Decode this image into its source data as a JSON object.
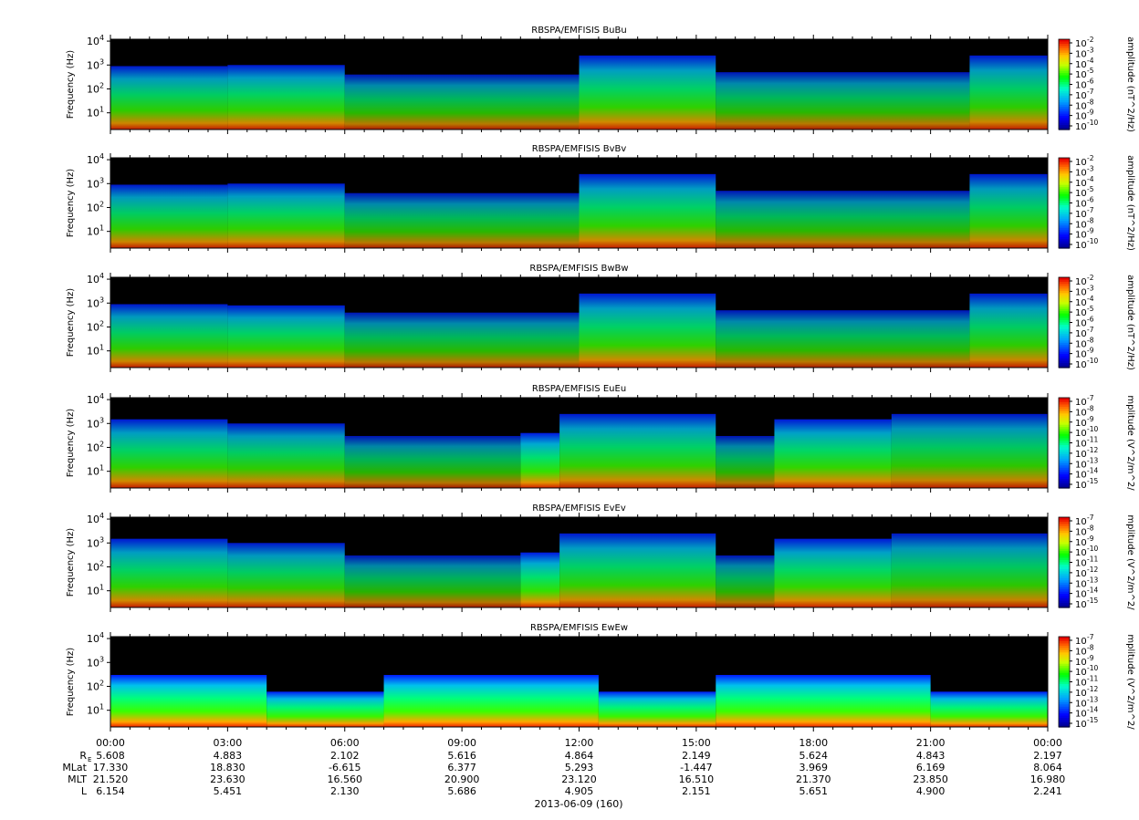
{
  "chart_data": [
    {
      "type": "heatmap",
      "title": "RBSPA/EMFISIS  BuBu",
      "ylabel": "Frequency (Hz)",
      "yscale": "log",
      "ylim": [
        2,
        12000
      ],
      "y_ticks": [
        10,
        100,
        1000,
        10000
      ],
      "colorbar": {
        "label": "amplitude (nT^2/Hz)",
        "scale": "log",
        "ticks": [
          -2,
          -3,
          -4,
          -5,
          -6,
          -7,
          -8,
          -9,
          -10
        ]
      },
      "bands": [
        {
          "t0": 0.0,
          "t1": 3.0,
          "fmax": 900,
          "level": 0.5
        },
        {
          "t0": 3.0,
          "t1": 6.0,
          "fmax": 1000,
          "level": 0.55
        },
        {
          "t0": 6.0,
          "t1": 12.0,
          "fmax": 400,
          "level": 0.3
        },
        {
          "t0": 12.0,
          "t1": 15.5,
          "fmax": 2500,
          "level": 0.55
        },
        {
          "t0": 15.5,
          "t1": 22.0,
          "fmax": 500,
          "level": 0.3
        },
        {
          "t0": 22.0,
          "t1": 24.0,
          "fmax": 2500,
          "level": 0.5
        }
      ]
    },
    {
      "type": "heatmap",
      "title": "RBSPA/EMFISIS  BvBv",
      "ylabel": "Frequency (Hz)",
      "yscale": "log",
      "ylim": [
        2,
        12000
      ],
      "y_ticks": [
        10,
        100,
        1000,
        10000
      ],
      "colorbar": {
        "label": "amplitude (nT^2/Hz)",
        "scale": "log",
        "ticks": [
          -2,
          -3,
          -4,
          -5,
          -6,
          -7,
          -8,
          -9,
          -10
        ]
      },
      "bands": [
        {
          "t0": 0.0,
          "t1": 3.0,
          "fmax": 900,
          "level": 0.5
        },
        {
          "t0": 3.0,
          "t1": 6.0,
          "fmax": 1000,
          "level": 0.55
        },
        {
          "t0": 6.0,
          "t1": 12.0,
          "fmax": 400,
          "level": 0.3
        },
        {
          "t0": 12.0,
          "t1": 15.5,
          "fmax": 2500,
          "level": 0.55
        },
        {
          "t0": 15.5,
          "t1": 22.0,
          "fmax": 500,
          "level": 0.3
        },
        {
          "t0": 22.0,
          "t1": 24.0,
          "fmax": 2500,
          "level": 0.5
        }
      ]
    },
    {
      "type": "heatmap",
      "title": "RBSPA/EMFISIS  BwBw",
      "ylabel": "Frequency (Hz)",
      "yscale": "log",
      "ylim": [
        2,
        12000
      ],
      "y_ticks": [
        10,
        100,
        1000,
        10000
      ],
      "colorbar": {
        "label": "amplitude (nT^2/Hz)",
        "scale": "log",
        "ticks": [
          -2,
          -3,
          -4,
          -5,
          -6,
          -7,
          -8,
          -9,
          -10
        ]
      },
      "bands": [
        {
          "t0": 0.0,
          "t1": 3.0,
          "fmax": 900,
          "level": 0.5
        },
        {
          "t0": 3.0,
          "t1": 6.0,
          "fmax": 800,
          "level": 0.55
        },
        {
          "t0": 6.0,
          "t1": 12.0,
          "fmax": 400,
          "level": 0.3
        },
        {
          "t0": 12.0,
          "t1": 15.5,
          "fmax": 2500,
          "level": 0.55
        },
        {
          "t0": 15.5,
          "t1": 22.0,
          "fmax": 500,
          "level": 0.3
        },
        {
          "t0": 22.0,
          "t1": 24.0,
          "fmax": 2500,
          "level": 0.5
        }
      ]
    },
    {
      "type": "heatmap",
      "title": "RBSPA/EMFISIS  EuEu",
      "ylabel": "Frequency (Hz)",
      "yscale": "log",
      "ylim": [
        2,
        12000
      ],
      "y_ticks": [
        10,
        100,
        1000,
        10000
      ],
      "colorbar": {
        "label": "mplitude (V^2/m^2/",
        "scale": "log",
        "ticks": [
          -7,
          -8,
          -9,
          -10,
          -11,
          -12,
          -13,
          -14,
          -15
        ]
      },
      "bands": [
        {
          "t0": 0.0,
          "t1": 3.0,
          "fmax": 1500,
          "level": 0.55
        },
        {
          "t0": 3.0,
          "t1": 6.0,
          "fmax": 1000,
          "level": 0.5
        },
        {
          "t0": 6.0,
          "t1": 10.5,
          "fmax": 300,
          "level": 0.25
        },
        {
          "t0": 10.5,
          "t1": 11.5,
          "fmax": 400,
          "level": 0.7
        },
        {
          "t0": 11.5,
          "t1": 15.5,
          "fmax": 2500,
          "level": 0.55
        },
        {
          "t0": 15.5,
          "t1": 17.0,
          "fmax": 300,
          "level": 0.25
        },
        {
          "t0": 17.0,
          "t1": 20.0,
          "fmax": 1500,
          "level": 0.6
        },
        {
          "t0": 20.0,
          "t1": 24.0,
          "fmax": 2500,
          "level": 0.45
        }
      ]
    },
    {
      "type": "heatmap",
      "title": "RBSPA/EMFISIS  EvEv",
      "ylabel": "Frequency (Hz)",
      "yscale": "log",
      "ylim": [
        2,
        12000
      ],
      "y_ticks": [
        10,
        100,
        1000,
        10000
      ],
      "colorbar": {
        "label": "mplitude (V^2/m^2/",
        "scale": "log",
        "ticks": [
          -7,
          -8,
          -9,
          -10,
          -11,
          -12,
          -13,
          -14,
          -15
        ]
      },
      "bands": [
        {
          "t0": 0.0,
          "t1": 3.0,
          "fmax": 1500,
          "level": 0.55
        },
        {
          "t0": 3.0,
          "t1": 6.0,
          "fmax": 1000,
          "level": 0.5
        },
        {
          "t0": 6.0,
          "t1": 10.5,
          "fmax": 300,
          "level": 0.25
        },
        {
          "t0": 10.5,
          "t1": 11.5,
          "fmax": 400,
          "level": 0.7
        },
        {
          "t0": 11.5,
          "t1": 15.5,
          "fmax": 2500,
          "level": 0.55
        },
        {
          "t0": 15.5,
          "t1": 17.0,
          "fmax": 300,
          "level": 0.25
        },
        {
          "t0": 17.0,
          "t1": 20.0,
          "fmax": 1500,
          "level": 0.6
        },
        {
          "t0": 20.0,
          "t1": 24.0,
          "fmax": 2500,
          "level": 0.45
        }
      ]
    },
    {
      "type": "heatmap",
      "title": "RBSPA/EMFISIS  EwEw",
      "ylabel": "Frequency (Hz)",
      "yscale": "log",
      "ylim": [
        2,
        12000
      ],
      "y_ticks": [
        10,
        100,
        1000,
        10000
      ],
      "colorbar": {
        "label": "mplitude (V^2/m^2/",
        "scale": "log",
        "ticks": [
          -7,
          -8,
          -9,
          -10,
          -11,
          -12,
          -13,
          -14,
          -15
        ]
      },
      "bands": [
        {
          "t0": 0.0,
          "t1": 4.0,
          "fmax": 300,
          "level": 1.0
        },
        {
          "t0": 4.0,
          "t1": 7.0,
          "fmax": 60,
          "level": 0.9
        },
        {
          "t0": 7.0,
          "t1": 12.5,
          "fmax": 300,
          "level": 1.0
        },
        {
          "t0": 12.5,
          "t1": 15.5,
          "fmax": 60,
          "level": 0.9
        },
        {
          "t0": 15.5,
          "t1": 21.0,
          "fmax": 300,
          "level": 1.0
        },
        {
          "t0": 21.0,
          "t1": 24.0,
          "fmax": 60,
          "level": 0.9
        }
      ]
    }
  ],
  "x_axis": {
    "tick_labels": [
      "00:00",
      "03:00",
      "06:00",
      "09:00",
      "12:00",
      "15:00",
      "18:00",
      "21:00",
      "00:00"
    ],
    "date_label": "2013-06-09 (160)"
  },
  "ephemeris": {
    "labels": [
      "R",
      "MLat",
      "MLT",
      "L"
    ],
    "rows": [
      [
        "5.608",
        "4.883",
        "2.102",
        "5.616",
        "4.864",
        "2.149",
        "5.624",
        "4.843",
        "2.197"
      ],
      [
        "17.330",
        "18.830",
        "-6.615",
        "6.377",
        "5.293",
        "-1.447",
        "3.969",
        "6.169",
        "8.064"
      ],
      [
        "21.520",
        "23.630",
        "16.560",
        "20.900",
        "23.120",
        "16.510",
        "21.370",
        "23.850",
        "16.980"
      ],
      [
        "6.154",
        "5.451",
        "2.130",
        "5.686",
        "4.905",
        "2.151",
        "5.651",
        "4.900",
        "2.241"
      ]
    ]
  },
  "colors": {
    "background": "#000000",
    "low": "#0000c8",
    "mid": "#00ff00",
    "high": "#ff0000"
  }
}
